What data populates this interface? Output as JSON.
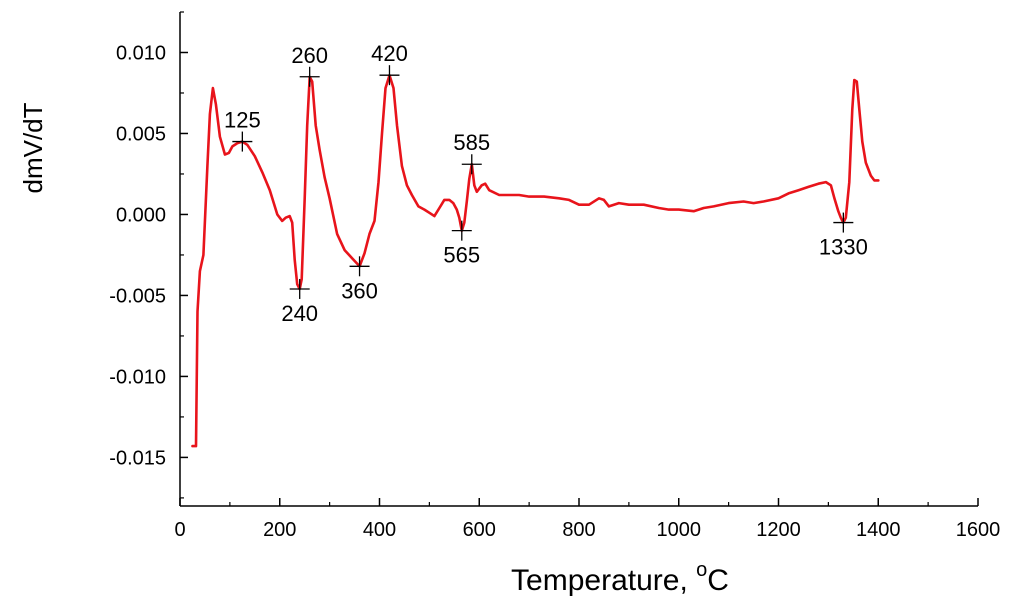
{
  "chart_data": {
    "type": "line",
    "title": "",
    "xlabel": "Temperature, ",
    "xlabel_super": "o",
    "xlabel_unit": "C",
    "ylabel": "dmV/dT",
    "xlim": [
      0,
      1600
    ],
    "ylim": [
      -0.018,
      0.0125
    ],
    "grid": false,
    "line_color": "#e8141b",
    "x_ticks": [
      0,
      200,
      400,
      600,
      800,
      1000,
      1200,
      1400,
      1600
    ],
    "x_tick_labels": [
      "0",
      "200",
      "400",
      "600",
      "800",
      "1000",
      "1200",
      "1400",
      "1600"
    ],
    "y_ticks": [
      -0.015,
      -0.01,
      -0.005,
      0.0,
      0.005,
      0.01
    ],
    "y_tick_labels": [
      "-0.015",
      "-0.010",
      "-0.005",
      "0.000",
      "0.005",
      "0.010"
    ],
    "series": [
      {
        "points": [
          [
            25,
            -0.0143
          ],
          [
            32,
            -0.0143
          ],
          [
            35,
            -0.006
          ],
          [
            40,
            -0.0035
          ],
          [
            47,
            -0.0025
          ],
          [
            55,
            0.003
          ],
          [
            60,
            0.0062
          ],
          [
            66,
            0.0078
          ],
          [
            72,
            0.0068
          ],
          [
            80,
            0.0048
          ],
          [
            90,
            0.0037
          ],
          [
            98,
            0.0038
          ],
          [
            105,
            0.0042
          ],
          [
            115,
            0.0044
          ],
          [
            125,
            0.0045
          ],
          [
            135,
            0.0043
          ],
          [
            150,
            0.0036
          ],
          [
            165,
            0.0026
          ],
          [
            180,
            0.0015
          ],
          [
            195,
            0.0
          ],
          [
            205,
            -0.0004
          ],
          [
            212,
            -0.0002
          ],
          [
            220,
            -0.0001
          ],
          [
            225,
            -0.0005
          ],
          [
            230,
            -0.0028
          ],
          [
            235,
            -0.0043
          ],
          [
            240,
            -0.0046
          ],
          [
            244,
            -0.004
          ],
          [
            250,
            0.001
          ],
          [
            255,
            0.0055
          ],
          [
            260,
            0.0085
          ],
          [
            265,
            0.0082
          ],
          [
            272,
            0.0055
          ],
          [
            280,
            0.004
          ],
          [
            290,
            0.0023
          ],
          [
            300,
            0.001
          ],
          [
            315,
            -0.0012
          ],
          [
            330,
            -0.0022
          ],
          [
            345,
            -0.0027
          ],
          [
            360,
            -0.0032
          ],
          [
            370,
            -0.0024
          ],
          [
            380,
            -0.0012
          ],
          [
            390,
            -0.0004
          ],
          [
            398,
            0.002
          ],
          [
            405,
            0.005
          ],
          [
            412,
            0.0078
          ],
          [
            420,
            0.0086
          ],
          [
            428,
            0.0078
          ],
          [
            435,
            0.0055
          ],
          [
            445,
            0.003
          ],
          [
            455,
            0.0018
          ],
          [
            465,
            0.0012
          ],
          [
            478,
            0.0005
          ],
          [
            490,
            0.0003
          ],
          [
            500,
            0.0001
          ],
          [
            510,
            -0.0001
          ],
          [
            520,
            0.0004
          ],
          [
            530,
            0.0009
          ],
          [
            540,
            0.0009
          ],
          [
            548,
            0.0007
          ],
          [
            555,
            0.0003
          ],
          [
            560,
            -0.0002
          ],
          [
            565,
            -0.001
          ],
          [
            570,
            -0.0005
          ],
          [
            575,
            0.0008
          ],
          [
            580,
            0.0022
          ],
          [
            585,
            0.0031
          ],
          [
            590,
            0.0018
          ],
          [
            595,
            0.0014
          ],
          [
            605,
            0.0018
          ],
          [
            612,
            0.0019
          ],
          [
            620,
            0.0015
          ],
          [
            640,
            0.0012
          ],
          [
            680,
            0.0012
          ],
          [
            700,
            0.0011
          ],
          [
            730,
            0.0011
          ],
          [
            760,
            0.001
          ],
          [
            780,
            0.0009
          ],
          [
            800,
            0.0006
          ],
          [
            820,
            0.0006
          ],
          [
            840,
            0.001
          ],
          [
            850,
            0.0009
          ],
          [
            860,
            0.0005
          ],
          [
            880,
            0.0007
          ],
          [
            900,
            0.0006
          ],
          [
            930,
            0.0006
          ],
          [
            960,
            0.0004
          ],
          [
            980,
            0.0003
          ],
          [
            1000,
            0.0003
          ],
          [
            1030,
            0.0002
          ],
          [
            1050,
            0.0004
          ],
          [
            1070,
            0.0005
          ],
          [
            1100,
            0.0007
          ],
          [
            1130,
            0.0008
          ],
          [
            1150,
            0.0007
          ],
          [
            1170,
            0.0008
          ],
          [
            1200,
            0.001
          ],
          [
            1220,
            0.0013
          ],
          [
            1240,
            0.0015
          ],
          [
            1260,
            0.0017
          ],
          [
            1280,
            0.0019
          ],
          [
            1295,
            0.002
          ],
          [
            1305,
            0.0018
          ],
          [
            1312,
            0.001
          ],
          [
            1320,
            0.0002
          ],
          [
            1325,
            -0.0002
          ],
          [
            1330,
            -0.0005
          ],
          [
            1335,
            -0.0002
          ],
          [
            1342,
            0.002
          ],
          [
            1348,
            0.0065
          ],
          [
            1352,
            0.0083
          ],
          [
            1357,
            0.0082
          ],
          [
            1362,
            0.0065
          ],
          [
            1368,
            0.0045
          ],
          [
            1375,
            0.0032
          ],
          [
            1385,
            0.0024
          ],
          [
            1392,
            0.0021
          ],
          [
            1400,
            0.0021
          ]
        ]
      }
    ],
    "markers": [
      {
        "label": "125",
        "x": 125,
        "y": 0.0045,
        "pos": "above"
      },
      {
        "label": "240",
        "x": 240,
        "y": -0.0046,
        "pos": "below"
      },
      {
        "label": "260",
        "x": 260,
        "y": 0.0085,
        "pos": "above"
      },
      {
        "label": "360",
        "x": 360,
        "y": -0.0032,
        "pos": "below"
      },
      {
        "label": "420",
        "x": 420,
        "y": 0.0086,
        "pos": "above"
      },
      {
        "label": "565",
        "x": 565,
        "y": -0.001,
        "pos": "below"
      },
      {
        "label": "585",
        "x": 585,
        "y": 0.0031,
        "pos": "above"
      },
      {
        "label": "1330",
        "x": 1330,
        "y": -0.0005,
        "pos": "below"
      }
    ]
  }
}
